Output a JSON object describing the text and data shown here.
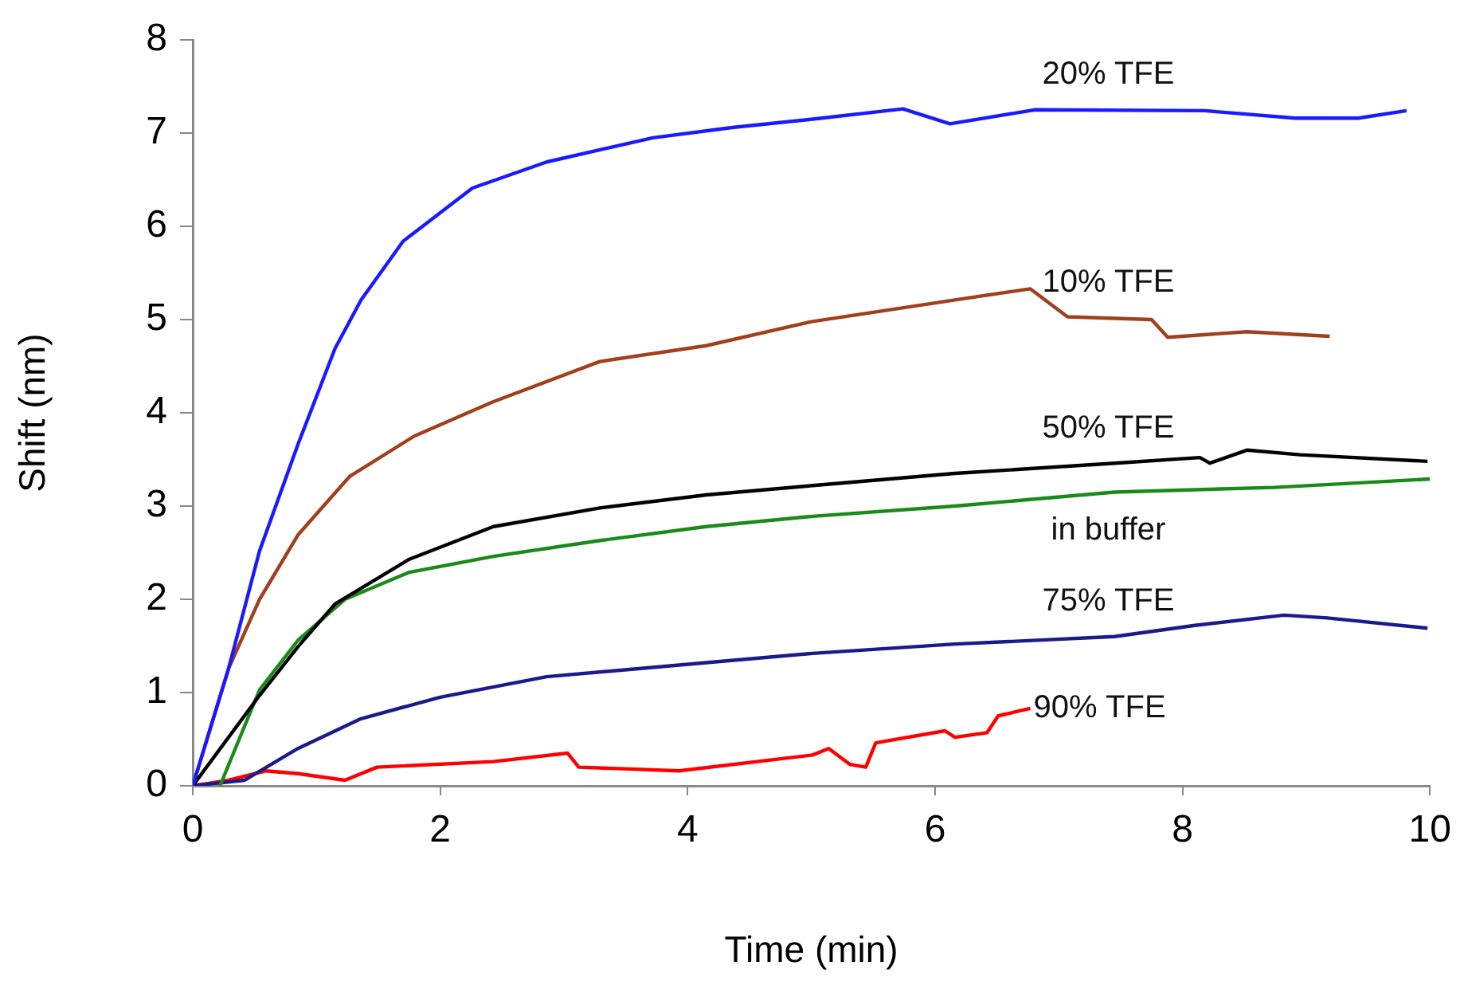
{
  "chart_data": {
    "type": "line",
    "xlabel": "Time (min)",
    "ylabel": "Shift (nm)",
    "xlim": [
      0,
      10
    ],
    "xticks": [
      0,
      2,
      4,
      6,
      8,
      10
    ],
    "ylim": [
      0,
      8
    ],
    "yticks": [
      0,
      1,
      2,
      3,
      4,
      5,
      6,
      7,
      8
    ],
    "grid": false,
    "legend": false,
    "marker": "none",
    "line_style": "solid",
    "series": [
      {
        "name": "20% TFE",
        "color": "#1a1aff",
        "x": [
          0,
          0.29,
          0.54,
          0.85,
          1.15,
          1.36,
          1.7,
          2.26,
          2.86,
          3.72,
          4.36,
          5.01,
          5.74,
          6.12,
          6.81,
          8.18,
          8.91,
          9.42,
          9.81
        ],
        "values": [
          0,
          1.26,
          2.52,
          3.66,
          4.69,
          5.21,
          5.84,
          6.41,
          6.69,
          6.95,
          7.06,
          7.15,
          7.26,
          7.1,
          7.25,
          7.24,
          7.16,
          7.16,
          7.24
        ]
      },
      {
        "name": "10% TFE",
        "color": "#a0401c",
        "x": [
          0,
          0.29,
          0.54,
          0.85,
          1.27,
          1.79,
          2.43,
          3.29,
          4.15,
          5.01,
          6.16,
          6.77,
          7.07,
          7.75,
          7.88,
          8.52,
          9.19
        ],
        "values": [
          0,
          1.26,
          2.0,
          2.69,
          3.32,
          3.75,
          4.12,
          4.55,
          4.72,
          4.98,
          5.21,
          5.33,
          5.03,
          5.0,
          4.81,
          4.87,
          4.82
        ]
      },
      {
        "name": "50% TFE",
        "color": "#000000",
        "x": [
          0,
          0.54,
          0.85,
          1.15,
          1.75,
          2.43,
          3.29,
          4.15,
          5.01,
          6.16,
          7.45,
          8.14,
          8.22,
          8.52,
          8.95,
          9.98
        ],
        "values": [
          0,
          0.97,
          1.49,
          1.95,
          2.43,
          2.78,
          2.98,
          3.12,
          3.22,
          3.35,
          3.46,
          3.52,
          3.46,
          3.6,
          3.55,
          3.48
        ]
      },
      {
        "name": "in buffer",
        "color": "#1a8a1a",
        "x": [
          0.22,
          0.54,
          0.85,
          1.23,
          1.75,
          2.43,
          3.29,
          4.15,
          5.01,
          6.16,
          7.45,
          8.74,
          10.0
        ],
        "values": [
          0,
          1.03,
          1.56,
          2.0,
          2.29,
          2.46,
          2.63,
          2.78,
          2.89,
          3.0,
          3.15,
          3.2,
          3.29
        ]
      },
      {
        "name": "75% TFE",
        "color": "#1a1a8c",
        "x": [
          0,
          0.42,
          0.85,
          1.36,
          2.0,
          2.86,
          4.15,
          5.01,
          6.16,
          7.45,
          8.1,
          8.82,
          9.17,
          9.98
        ],
        "values": [
          0,
          0.06,
          0.4,
          0.72,
          0.95,
          1.17,
          1.32,
          1.42,
          1.52,
          1.6,
          1.72,
          1.83,
          1.8,
          1.69
        ]
      },
      {
        "name": "90% TFE",
        "color": "#ff0000",
        "x": [
          0,
          0.29,
          0.59,
          0.85,
          1.23,
          1.49,
          2.43,
          3.03,
          3.12,
          3.93,
          5.01,
          5.14,
          5.31,
          5.44,
          5.52,
          6.08,
          6.16,
          6.42,
          6.51,
          6.77
        ],
        "values": [
          0,
          0.06,
          0.16,
          0.13,
          0.06,
          0.2,
          0.26,
          0.35,
          0.2,
          0.16,
          0.33,
          0.4,
          0.23,
          0.2,
          0.46,
          0.59,
          0.52,
          0.57,
          0.75,
          0.83
        ]
      }
    ]
  }
}
